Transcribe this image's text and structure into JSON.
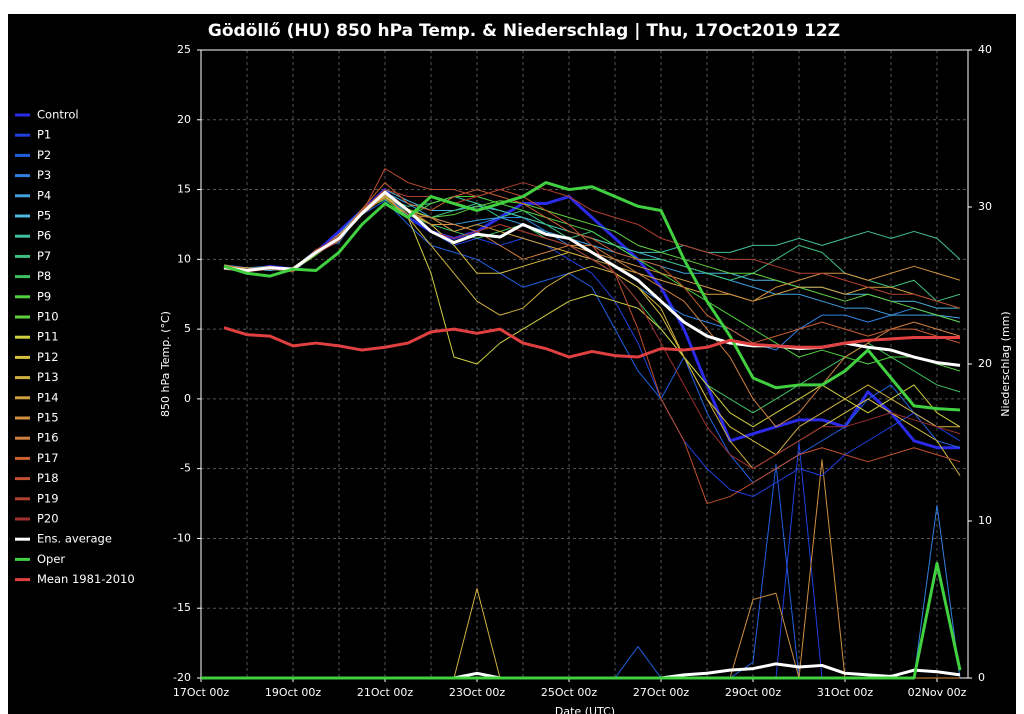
{
  "chart_data": {
    "type": "line",
    "title": "Gödöllő  (HU)  850 hPa Temp. & Niederschlag | Thu, 17Oct2019 12Z",
    "y_label": "850 hPa Temp. (°C)",
    "y2_label": "Niederschlag (mm)",
    "x_label": "Date (UTC)",
    "categories": [
      "17Oct 00z",
      null,
      null,
      null,
      "19Oct 00z",
      null,
      null,
      null,
      "21Oct 00z",
      null,
      null,
      null,
      "23Oct 00z",
      null,
      null,
      null,
      "25Oct 00z",
      null,
      null,
      null,
      "27Oct 00z",
      null,
      null,
      null,
      "29Oct 00z",
      null,
      null,
      null,
      "31Oct 00z",
      null,
      null,
      null,
      "02Nov 00z",
      null
    ],
    "ylim": [
      -20,
      25
    ],
    "yticks": [
      -20,
      -15,
      -10,
      -5,
      0,
      5,
      10,
      15,
      20,
      25
    ],
    "y2lim": [
      0,
      40
    ],
    "y2ticks": [
      0,
      10,
      20,
      30,
      40
    ],
    "grid": true,
    "legend": "left",
    "series": [
      {
        "name": "Control",
        "color": "#2a2ae8",
        "values": [
          null,
          9.4,
          9.2,
          9.5,
          9.3,
          10.5,
          12,
          13.5,
          15,
          13,
          12,
          11.5,
          12,
          13,
          14,
          14,
          14.5,
          13,
          11.5,
          10,
          8,
          5,
          1,
          -3,
          -2.5,
          -2,
          -1.5,
          -1.5,
          -2,
          0.5,
          -1,
          -3,
          -3.5,
          -3.5
        ]
      },
      {
        "name": "P1",
        "color": "#2040e0",
        "values": [
          null,
          9.5,
          9.3,
          9.4,
          9.2,
          10.6,
          11.5,
          13.4,
          14.5,
          13,
          12,
          11,
          11.5,
          11,
          11.5,
          11,
          10,
          9,
          7,
          4,
          0,
          -3,
          -5,
          -6.5,
          -7,
          -6,
          -5,
          -5.5,
          -4,
          -3,
          -2,
          -1,
          -2,
          -3
        ],
        "precip": [
          0,
          0,
          0,
          0,
          0,
          0,
          0,
          0,
          0,
          0,
          0,
          0,
          0,
          0,
          0,
          0,
          0,
          0,
          0,
          0,
          0,
          0,
          0,
          0,
          0,
          0,
          15,
          0,
          0,
          0,
          0,
          0,
          0,
          0
        ]
      },
      {
        "name": "P2",
        "color": "#2060e0",
        "values": [
          null,
          9.4,
          9.2,
          9.3,
          9.1,
          10.4,
          11.6,
          13.2,
          14.2,
          12.5,
          11,
          10.5,
          10,
          9,
          8,
          8.5,
          9,
          8,
          5,
          2,
          0,
          3,
          -1,
          -4,
          -6,
          -5,
          -4,
          -3,
          -2,
          0,
          1,
          -1,
          -3,
          -3.5
        ],
        "precip": [
          0,
          0,
          0,
          0,
          0,
          0,
          0,
          0,
          0,
          0,
          0,
          0,
          0,
          0,
          0,
          0,
          0,
          0,
          0,
          2,
          0,
          0,
          0,
          0,
          1,
          13.6,
          0,
          0,
          0,
          0,
          0,
          0,
          0,
          0
        ]
      },
      {
        "name": "P3",
        "color": "#3080e0",
        "values": [
          null,
          9.6,
          9.4,
          9.5,
          9.3,
          10.7,
          11.2,
          13.5,
          14.6,
          13.2,
          12.5,
          12,
          12.5,
          13,
          13,
          12,
          11,
          10,
          9,
          8,
          7,
          6,
          5.5,
          5,
          4,
          3.5,
          5,
          6,
          6,
          5.5,
          6,
          6.5,
          6,
          5.5
        ],
        "precip": [
          0,
          0,
          0,
          0,
          0,
          0,
          0,
          0,
          0,
          0,
          0,
          0,
          0,
          0,
          0,
          0,
          0,
          0,
          0,
          0,
          0,
          0,
          0,
          0,
          0,
          0,
          0,
          0,
          0,
          0,
          0,
          0,
          11,
          0
        ]
      },
      {
        "name": "P4",
        "color": "#40a0e0",
        "values": [
          null,
          9.3,
          9.1,
          9.4,
          9.2,
          10.5,
          11.8,
          13.6,
          14.8,
          14,
          13,
          12.5,
          12.8,
          13,
          12.5,
          12,
          11.5,
          11,
          10.5,
          10,
          9.5,
          9,
          9,
          8.5,
          8,
          7.5,
          7.5,
          7,
          6.5,
          6.5,
          6,
          6,
          6,
          5.8
        ]
      },
      {
        "name": "P5",
        "color": "#50b8e0",
        "values": [
          null,
          9.5,
          9.3,
          9.2,
          9.4,
          10.6,
          11.4,
          13.3,
          15,
          14.2,
          13.5,
          13.5,
          13.8,
          13.5,
          13,
          12.5,
          12,
          11.5,
          11,
          10.5,
          10,
          9.5,
          9,
          9,
          8.5,
          8.5,
          8,
          8,
          7.5,
          7.5,
          7,
          7,
          6.5,
          6.5
        ]
      },
      {
        "name": "P6",
        "color": "#40c0a0",
        "values": [
          null,
          9.4,
          9.2,
          9.5,
          9.3,
          10.5,
          11.6,
          13.5,
          14.4,
          13.8,
          14,
          14.5,
          14,
          13.5,
          13,
          12.5,
          12,
          11.5,
          11,
          10.5,
          10.5,
          11,
          10.5,
          10.5,
          11,
          11,
          11.5,
          11,
          11.5,
          12,
          11.5,
          12,
          11.5,
          10
        ]
      },
      {
        "name": "P7",
        "color": "#40c080",
        "values": [
          null,
          9.6,
          9.3,
          9.4,
          9.2,
          10.4,
          11.5,
          13.2,
          14.6,
          13.5,
          13,
          13.5,
          14,
          13,
          13.5,
          12.5,
          11.5,
          12,
          11,
          10,
          10,
          9.5,
          9,
          8.5,
          9,
          10,
          11,
          10.5,
          9,
          8.5,
          8,
          8.5,
          7,
          7.5
        ]
      },
      {
        "name": "P8",
        "color": "#40c060",
        "values": [
          null,
          9.5,
          9.2,
          9.3,
          9.1,
          10.6,
          11.3,
          13.4,
          14.9,
          13.2,
          12.5,
          12,
          11.5,
          12,
          12.5,
          11.5,
          11,
          10,
          9,
          7,
          5,
          3,
          1,
          0,
          -1,
          0,
          1,
          2,
          3,
          4,
          3,
          2,
          1,
          0.5
        ]
      },
      {
        "name": "P9",
        "color": "#50d040",
        "values": [
          null,
          9.4,
          9.1,
          9.4,
          9.3,
          10.5,
          11.7,
          13.5,
          14.3,
          13,
          14,
          14.5,
          14.5,
          14,
          13.5,
          13,
          12.5,
          12,
          11,
          10,
          9,
          8,
          7,
          6,
          5,
          4,
          3,
          3.5,
          3,
          2.5,
          3,
          3,
          2.5,
          2
        ]
      },
      {
        "name": "P10",
        "color": "#60d040",
        "values": [
          null,
          9.5,
          9.3,
          9.5,
          9.2,
          10.3,
          11.5,
          13.6,
          14.7,
          13.6,
          13,
          13.2,
          13.8,
          14.2,
          14,
          13.5,
          13,
          12.5,
          12,
          11,
          10.5,
          10,
          9.5,
          9,
          9,
          8.5,
          8,
          7.5,
          7,
          7.5,
          7,
          6.5,
          6,
          5.5
        ]
      },
      {
        "name": "P11",
        "color": "#d0d040",
        "values": [
          null,
          9.4,
          9.2,
          9.3,
          9.4,
          10.6,
          11.4,
          13.5,
          14.5,
          13,
          9,
          3,
          2.5,
          4,
          5,
          6,
          7,
          7.5,
          7,
          6.5,
          5,
          3,
          1,
          -1,
          -2,
          -1,
          0,
          1,
          0,
          -1,
          0,
          1,
          -1,
          -2
        ]
      },
      {
        "name": "P12",
        "color": "#d8c040",
        "values": [
          null,
          9.5,
          9.3,
          9.4,
          9.2,
          10.4,
          11.6,
          13.3,
          14.8,
          13.4,
          12.5,
          11,
          9,
          9,
          9.5,
          10,
          10.5,
          10,
          9,
          8,
          6,
          3,
          0,
          -2,
          -3,
          -4,
          -3,
          -2,
          -1,
          0,
          -1,
          -2,
          -3,
          -5.5
        ]
      },
      {
        "name": "P13",
        "color": "#d0b040",
        "values": [
          null,
          9.3,
          9.2,
          9.5,
          9.3,
          10.5,
          11.5,
          13.4,
          14.6,
          13,
          11,
          9,
          7,
          6,
          6.5,
          8,
          9,
          9.5,
          9,
          8,
          6.5,
          3,
          0,
          -3,
          -5,
          -4,
          -2,
          -1,
          0,
          1,
          0,
          -1,
          -2,
          -2
        ],
        "precip": [
          0,
          0,
          0,
          0,
          0,
          0,
          0,
          0,
          0,
          0,
          0,
          0,
          5.7,
          0,
          0,
          0,
          0,
          0,
          0,
          0,
          0,
          0,
          0,
          0,
          0,
          0,
          0,
          0,
          0,
          0,
          0,
          0,
          0,
          0
        ]
      },
      {
        "name": "P14",
        "color": "#d0a040",
        "values": [
          null,
          9.5,
          9.4,
          9.3,
          9.2,
          10.5,
          11.8,
          13.2,
          14.5,
          13.5,
          13,
          12,
          12.5,
          12,
          11.5,
          11,
          10.5,
          10,
          9.5,
          9,
          8.5,
          8,
          7.5,
          7.5,
          7,
          7.5,
          8,
          8,
          7.5,
          8,
          8,
          7.5,
          7,
          6.5
        ]
      },
      {
        "name": "P15",
        "color": "#d09040",
        "values": [
          null,
          9.4,
          9.1,
          9.4,
          9.3,
          10.6,
          11.5,
          13.5,
          14.9,
          13.6,
          12.5,
          12.5,
          12,
          12.5,
          12,
          11.5,
          11,
          10.5,
          10,
          9.5,
          9,
          8.5,
          8,
          7.5,
          7,
          8,
          8.5,
          9,
          9,
          8.5,
          9,
          9.5,
          9,
          8.5
        ],
        "precip": [
          0,
          0,
          0,
          0,
          0,
          0,
          0,
          0,
          0,
          0,
          0,
          0,
          0,
          0,
          0,
          0,
          0,
          0,
          0,
          0,
          0,
          0,
          0,
          0,
          5,
          5.4,
          0,
          13.9,
          0,
          0,
          0,
          0,
          0,
          0
        ]
      },
      {
        "name": "P16",
        "color": "#d08040",
        "values": [
          null,
          9.6,
          9.3,
          9.5,
          9.2,
          10.4,
          11.4,
          13.4,
          14.4,
          13.2,
          13,
          12.5,
          12,
          11,
          10,
          10.5,
          11,
          11,
          10,
          9,
          8,
          7,
          5,
          3,
          0,
          -2,
          -1,
          1,
          3,
          4,
          5,
          5.5,
          5,
          4.5
        ]
      },
      {
        "name": "P17",
        "color": "#c86030",
        "values": [
          null,
          9.5,
          9.2,
          9.3,
          9.4,
          10.5,
          11.6,
          13.6,
          15.5,
          14,
          13.5,
          14.5,
          15,
          14.5,
          14,
          13,
          12,
          11.5,
          10.5,
          10,
          9.5,
          8,
          6,
          5,
          4,
          4.5,
          5,
          5.5,
          5,
          4.5,
          5,
          5,
          4.5,
          4
        ]
      },
      {
        "name": "P18",
        "color": "#c05030",
        "values": [
          null,
          9.4,
          9.3,
          9.4,
          9.1,
          10.7,
          11.5,
          13.3,
          16.5,
          15.5,
          15,
          15,
          14.5,
          15,
          14.5,
          13.5,
          12.5,
          11,
          9,
          5,
          0,
          -3,
          -7.5,
          -7,
          -6,
          -5,
          -4,
          -3.5,
          -4,
          -4.5,
          -4,
          -3.5,
          -4,
          -4.5
        ]
      },
      {
        "name": "P19",
        "color": "#b04030",
        "values": [
          null,
          9.5,
          9.2,
          9.5,
          9.3,
          10.4,
          11.3,
          13.5,
          15,
          14.5,
          14.5,
          14,
          14.5,
          15,
          15.5,
          15,
          14.5,
          13.5,
          13,
          12.5,
          11.5,
          11,
          10.5,
          10,
          10,
          9.5,
          9,
          9,
          8.5,
          8,
          7.5,
          7.5,
          7,
          6.5
        ]
      },
      {
        "name": "P20",
        "color": "#a03030",
        "values": [
          null,
          9.3,
          9.1,
          9.3,
          9.2,
          10.6,
          11.7,
          13.2,
          14.7,
          13.4,
          12,
          11.5,
          12,
          12.5,
          12,
          11.5,
          11,
          10,
          9,
          7,
          4,
          1,
          -2,
          -4,
          -5,
          -4,
          -3,
          -2,
          -2,
          -1.5,
          -1,
          -1.5,
          -2,
          -2.5
        ]
      },
      {
        "name": "Ens. average",
        "color": "#ffffff",
        "values": [
          null,
          9.4,
          9.2,
          9.4,
          9.3,
          10.5,
          11.5,
          13.3,
          14.8,
          13.5,
          12,
          11.2,
          11.8,
          11.6,
          12.5,
          11.8,
          11.5,
          10.5,
          9.5,
          8.5,
          7,
          5.5,
          4.5,
          4,
          3.8,
          3.8,
          3.6,
          3.7,
          4,
          3.7,
          3.5,
          3,
          2.6,
          2.4
        ],
        "precip": [
          0,
          0,
          0,
          0,
          0,
          0,
          0,
          0,
          0,
          0,
          0,
          0,
          0.3,
          0,
          0,
          0,
          0,
          0,
          0,
          0,
          0,
          0.2,
          0.3,
          0.5,
          0.6,
          0.9,
          0.7,
          0.8,
          0.3,
          0.2,
          0.1,
          0.5,
          0.4,
          0.2
        ]
      },
      {
        "name": "Oper",
        "color": "#40d040",
        "values": [
          null,
          9.5,
          9,
          8.8,
          9.3,
          9.2,
          10.5,
          12.5,
          14,
          13,
          14.5,
          14,
          13.5,
          14,
          14.5,
          15.5,
          15,
          15.2,
          14.5,
          13.8,
          13.5,
          10,
          7,
          4.5,
          1.5,
          0.8,
          1,
          1,
          2,
          3.5,
          1.5,
          -0.5,
          -0.7,
          -0.8
        ],
        "precip": [
          0,
          0,
          0,
          0,
          0,
          0,
          0,
          0,
          0,
          0,
          0,
          0,
          0,
          0,
          0,
          0,
          0,
          0,
          0,
          0,
          0,
          0,
          0,
          0,
          0,
          0,
          0,
          0,
          0,
          0,
          0,
          0,
          7.3,
          0.5
        ]
      },
      {
        "name": "Mean 1981-2010",
        "color": "#e04040",
        "values": [
          null,
          5.1,
          4.6,
          4.5,
          3.8,
          4,
          3.8,
          3.5,
          3.7,
          4,
          4.8,
          5,
          4.7,
          5,
          4,
          3.6,
          3,
          3.4,
          3.1,
          3,
          3.6,
          3.5,
          3.7,
          4.2,
          3.9,
          3.8,
          3.7,
          3.7,
          4,
          4.2,
          4.3,
          4.4,
          4.4,
          4.4
        ]
      }
    ]
  }
}
